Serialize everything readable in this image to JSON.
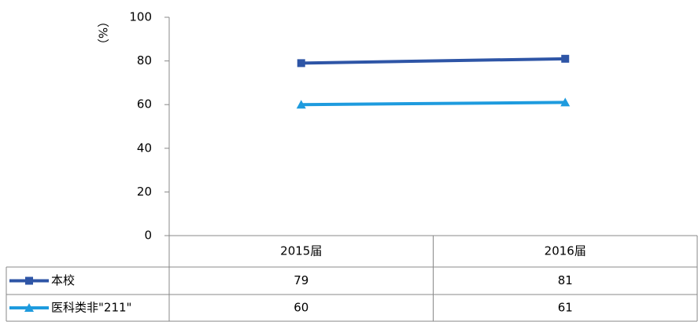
{
  "chart_data": {
    "type": "line",
    "y_label": "（%）",
    "categories": [
      "2015届",
      "2016届"
    ],
    "series": [
      {
        "name": "本校",
        "color": "#2E55A6",
        "marker": "square",
        "values": [
          79,
          81
        ]
      },
      {
        "name": "医科类非\"211\"",
        "color": "#1E9BDE",
        "marker": "triangle",
        "values": [
          60,
          61
        ]
      }
    ],
    "ylim": [
      0,
      100
    ],
    "yticks": [
      0,
      20,
      40,
      60,
      80,
      100
    ]
  }
}
